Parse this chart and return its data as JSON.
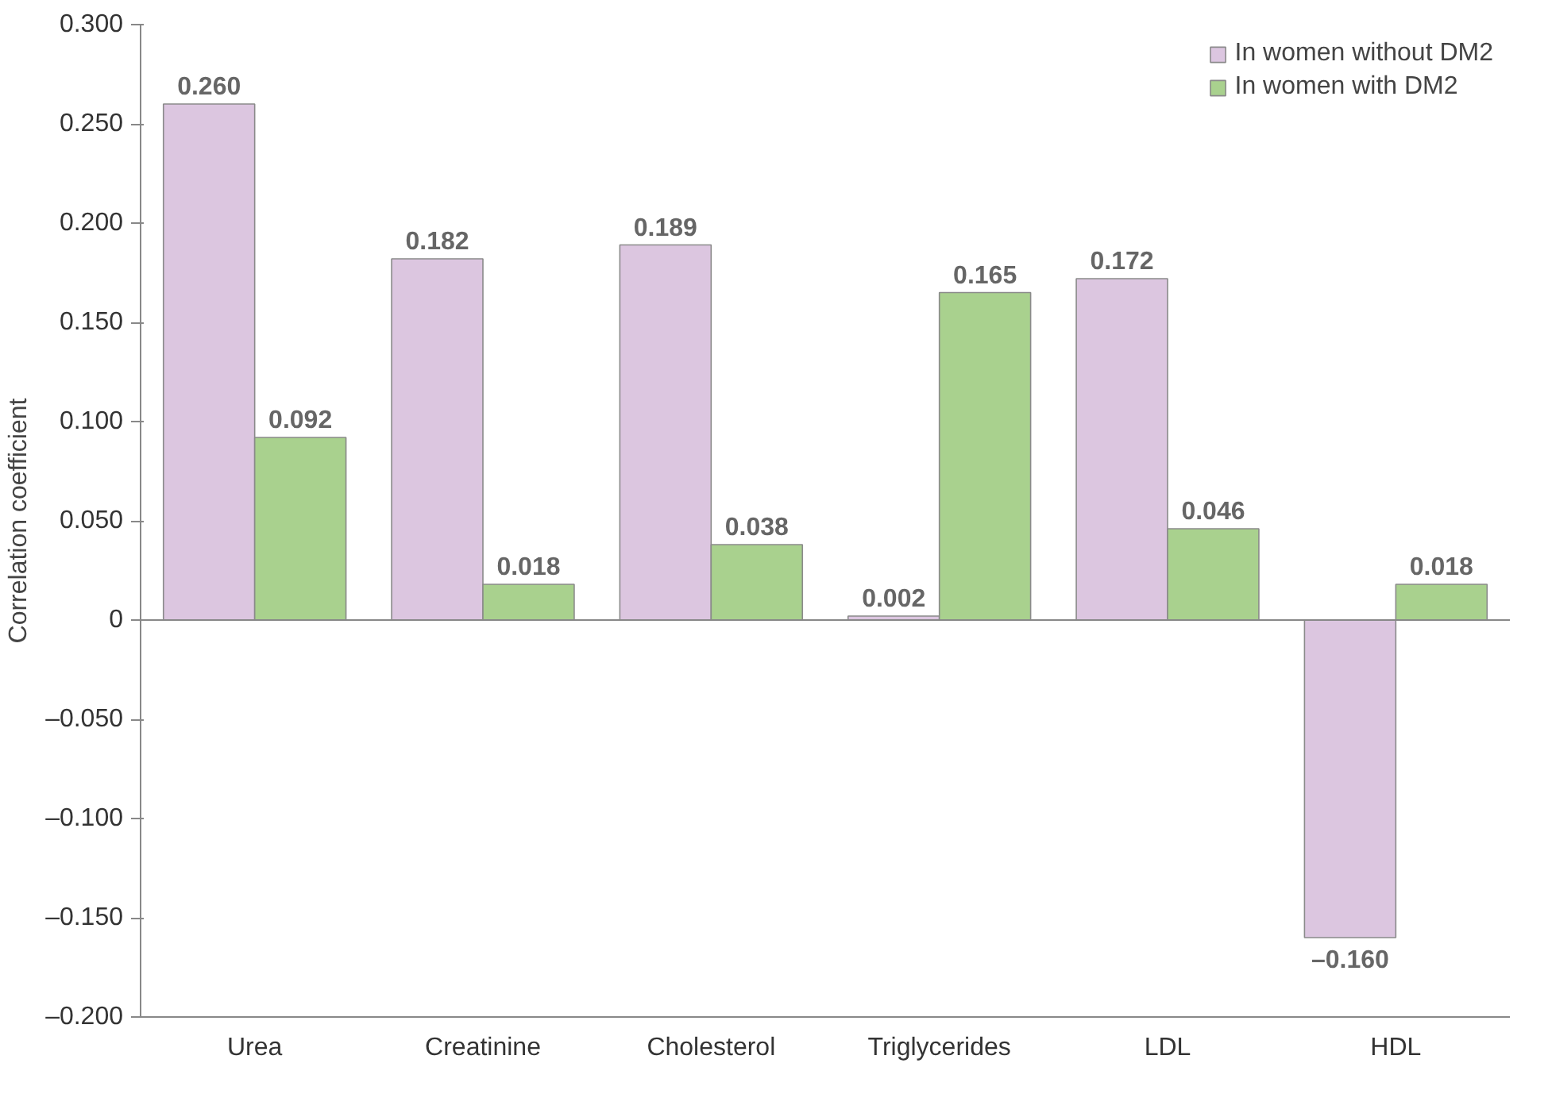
{
  "chart_data": {
    "type": "bar",
    "ylabel": "Correlation coefficient",
    "categories": [
      "Urea",
      "Creatinine",
      "Cholesterol",
      "Triglycerides",
      "LDL",
      "HDL"
    ],
    "series": [
      {
        "name": "In women without DM2",
        "color": "#dcc6e0",
        "values": [
          0.26,
          0.182,
          0.189,
          0.002,
          0.172,
          -0.16
        ],
        "value_labels": [
          "0.260",
          "0.182",
          "0.189",
          "0.002",
          "0.172",
          "–0.160"
        ]
      },
      {
        "name": "In women with DM2",
        "color": "#a9d18e",
        "values": [
          0.092,
          0.018,
          0.038,
          0.165,
          0.046,
          0.018
        ],
        "value_labels": [
          "0.092",
          "0.018",
          "0.038",
          "0.165",
          "0.046",
          "0.018"
        ]
      }
    ],
    "ylim": [
      -0.2,
      0.3
    ],
    "yticks": [
      {
        "value": -0.2,
        "label": "–0.200"
      },
      {
        "value": -0.15,
        "label": "–0.150"
      },
      {
        "value": -0.1,
        "label": "–0.100"
      },
      {
        "value": -0.05,
        "label": "–0.050"
      },
      {
        "value": 0,
        "label": "0"
      },
      {
        "value": 0.05,
        "label": "0.050"
      },
      {
        "value": 0.1,
        "label": "0.100"
      },
      {
        "value": 0.15,
        "label": "0.150"
      },
      {
        "value": 0.2,
        "label": "0.200"
      },
      {
        "value": 0.25,
        "label": "0.250"
      },
      {
        "value": 0.3,
        "label": "0.300"
      }
    ],
    "ref_lines": [
      {
        "axis": "y",
        "value": 0,
        "color": "#888888"
      }
    ],
    "grid": false,
    "legend": "top right"
  }
}
